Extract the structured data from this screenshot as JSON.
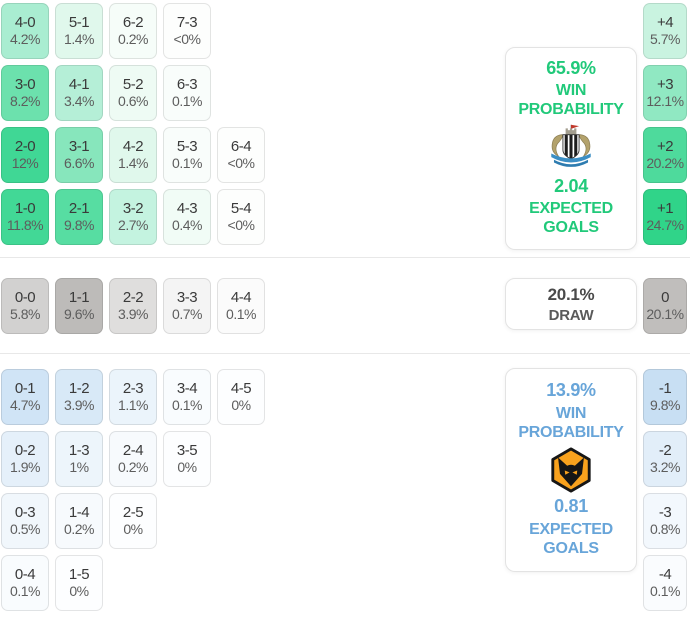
{
  "colors": {
    "home_accent": "#21c97a",
    "away_accent": "#68a5d9",
    "draw_text": "#4a4a4a",
    "divider": "#e8e8e8",
    "panel_border": "#e3e3e3",
    "win_cell_strong": "#40d795",
    "draw_cell_strong": "#bdbbb9",
    "loss_cell_strong": "#c8dff3"
  },
  "panels": {
    "home": {
      "win_probability": "65.9%",
      "win_label": "WIN PROBABILITY",
      "expected_goals": "2.04",
      "goals_label": "EXPECTED GOALS",
      "badge_icon": "newcastle-united-crest"
    },
    "draw": {
      "probability": "20.1%",
      "label": "DRAW"
    },
    "away": {
      "win_probability": "13.9%",
      "win_label": "WIN PROBABILITY",
      "expected_goals": "0.81",
      "goals_label": "EXPECTED GOALS",
      "badge_icon": "wolverhampton-wanderers-crest"
    }
  },
  "grid": {
    "win_rows": [
      [
        {
          "score": "4-0",
          "pct": "4.2%",
          "bg": "#a9edd1"
        },
        {
          "score": "5-1",
          "pct": "1.4%",
          "bg": "#e0f8ec"
        },
        {
          "score": "6-2",
          "pct": "0.2%",
          "bg": "#f6fdf9"
        },
        {
          "score": "7-3",
          "pct": "<0%",
          "bg": "#fdfefd"
        }
      ],
      [
        {
          "score": "3-0",
          "pct": "8.2%",
          "bg": "#6ce1ad"
        },
        {
          "score": "4-1",
          "pct": "3.4%",
          "bg": "#b5efd7"
        },
        {
          "score": "5-2",
          "pct": "0.6%",
          "bg": "#eefbf4"
        },
        {
          "score": "6-3",
          "pct": "0.1%",
          "bg": "#f9fdfb"
        }
      ],
      [
        {
          "score": "2-0",
          "pct": "12%",
          "bg": "#40d795"
        },
        {
          "score": "3-1",
          "pct": "6.6%",
          "bg": "#87e6bc"
        },
        {
          "score": "4-2",
          "pct": "1.4%",
          "bg": "#e0f8ec"
        },
        {
          "score": "5-3",
          "pct": "0.1%",
          "bg": "#f9fdfb"
        },
        {
          "score": "6-4",
          "pct": "<0%",
          "bg": "#fdfefd"
        }
      ],
      [
        {
          "score": "1-0",
          "pct": "11.8%",
          "bg": "#42d896"
        },
        {
          "score": "2-1",
          "pct": "9.8%",
          "bg": "#57dda2"
        },
        {
          "score": "3-2",
          "pct": "2.7%",
          "bg": "#c4f3e0"
        },
        {
          "score": "4-3",
          "pct": "0.4%",
          "bg": "#f1fcf6"
        },
        {
          "score": "5-4",
          "pct": "<0%",
          "bg": "#fdfefd"
        }
      ]
    ],
    "draw_rows": [
      [
        {
          "score": "0-0",
          "pct": "5.8%",
          "bg": "#d2d1d0"
        },
        {
          "score": "1-1",
          "pct": "9.6%",
          "bg": "#bdbbb9"
        },
        {
          "score": "2-2",
          "pct": "3.9%",
          "bg": "#dfdedd"
        },
        {
          "score": "3-3",
          "pct": "0.7%",
          "bg": "#f4f4f4"
        },
        {
          "score": "4-4",
          "pct": "0.1%",
          "bg": "#fbfbfb"
        }
      ]
    ],
    "loss_rows": [
      [
        {
          "score": "0-1",
          "pct": "4.7%",
          "bg": "#d0e4f6"
        },
        {
          "score": "1-2",
          "pct": "3.9%",
          "bg": "#d8e9f7"
        },
        {
          "score": "2-3",
          "pct": "1.1%",
          "bg": "#ebf4fb"
        },
        {
          "score": "3-4",
          "pct": "0.1%",
          "bg": "#f9fcfe"
        },
        {
          "score": "4-5",
          "pct": "0%",
          "bg": "#fdfeff"
        }
      ],
      [
        {
          "score": "0-2",
          "pct": "1.9%",
          "bg": "#e5f0fa"
        },
        {
          "score": "1-3",
          "pct": "1%",
          "bg": "#edf5fb"
        },
        {
          "score": "2-4",
          "pct": "0.2%",
          "bg": "#f7fafd"
        },
        {
          "score": "3-5",
          "pct": "0%",
          "bg": "#fdfeff"
        }
      ],
      [
        {
          "score": "0-3",
          "pct": "0.5%",
          "bg": "#f1f7fc"
        },
        {
          "score": "1-4",
          "pct": "0.2%",
          "bg": "#f7fafd"
        },
        {
          "score": "2-5",
          "pct": "0%",
          "bg": "#fdfeff"
        }
      ],
      [
        {
          "score": "0-4",
          "pct": "0.1%",
          "bg": "#f9fcfe"
        },
        {
          "score": "1-5",
          "pct": "0%",
          "bg": "#fdfeff"
        }
      ]
    ]
  },
  "goal_diff": {
    "win": [
      {
        "diff": "+4",
        "pct": "5.7%",
        "bg": "#c9f3e0"
      },
      {
        "diff": "+3",
        "pct": "12.1%",
        "bg": "#90e8c2"
      },
      {
        "diff": "+2",
        "pct": "20.2%",
        "bg": "#4eda9c"
      },
      {
        "diff": "+1",
        "pct": "24.7%",
        "bg": "#30d489"
      }
    ],
    "draw": [
      {
        "diff": "0",
        "pct": "20.1%",
        "bg": "#c0bebc"
      }
    ],
    "loss": [
      {
        "diff": "-1",
        "pct": "9.8%",
        "bg": "#c8dff3"
      },
      {
        "diff": "-2",
        "pct": "3.2%",
        "bg": "#e2eef9"
      },
      {
        "diff": "-3",
        "pct": "0.8%",
        "bg": "#f3f8fd"
      },
      {
        "diff": "-4",
        "pct": "0.1%",
        "bg": "#fafcfe"
      }
    ]
  },
  "chart_data": {
    "type": "heatmap",
    "title": "Match scoreline and goal-difference probabilities",
    "home": {
      "win_probability_pct": 65.9,
      "expected_goals": 2.04
    },
    "draw_probability_pct": 20.1,
    "away": {
      "win_probability_pct": 13.9,
      "expected_goals": 0.81
    },
    "scoreline_probabilities_pct": {
      "4-0": 4.2,
      "5-1": 1.4,
      "6-2": 0.2,
      "7-3": "<0",
      "3-0": 8.2,
      "4-1": 3.4,
      "5-2": 0.6,
      "6-3": 0.1,
      "2-0": 12,
      "3-1": 6.6,
      "4-2": 1.4,
      "5-3": 0.1,
      "6-4": "<0",
      "1-0": 11.8,
      "2-1": 9.8,
      "3-2": 2.7,
      "4-3": 0.4,
      "5-4": "<0",
      "0-0": 5.8,
      "1-1": 9.6,
      "2-2": 3.9,
      "3-3": 0.7,
      "4-4": 0.1,
      "0-1": 4.7,
      "1-2": 3.9,
      "2-3": 1.1,
      "3-4": 0.1,
      "4-5": 0,
      "0-2": 1.9,
      "1-3": 1,
      "2-4": 0.2,
      "3-5": 0,
      "0-3": 0.5,
      "1-4": 0.2,
      "2-5": 0,
      "0-4": 0.1,
      "1-5": 0
    },
    "goal_difference_probabilities_pct": {
      "+4": 5.7,
      "+3": 12.1,
      "+2": 20.2,
      "+1": 24.7,
      "0": 20.1,
      "-1": 9.8,
      "-2": 3.2,
      "-3": 0.8,
      "-4": 0.1
    },
    "layout": "rows grouped by result: home-win scorelines (green), draws (gray), away-win scorelines (blue); goal-difference column at right"
  }
}
